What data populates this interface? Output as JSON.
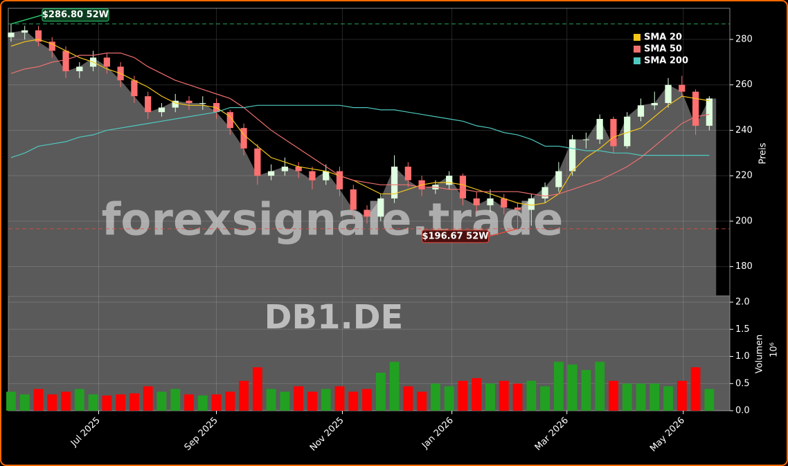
{
  "chart_data": {
    "type": "candlestick",
    "ticker": "DB1.DE",
    "watermark": "forexsignale.trade",
    "ylabel": "Preis",
    "volume_label": "Volumen",
    "volume_offset": "10⁶",
    "xlim": [
      -0.2,
      52.5
    ],
    "xticks": [
      {
        "value": 6.4,
        "label": "Jul 2025"
      },
      {
        "value": 15.0,
        "label": "Sep 2025"
      },
      {
        "value": 24.2,
        "label": "Nov 2025"
      },
      {
        "value": 32.2,
        "label": "Jan 2026"
      },
      {
        "value": 40.6,
        "label": "Mar 2026"
      },
      {
        "value": 49.1,
        "label": "May 2026"
      }
    ],
    "ylim": [
      167.1,
      293.7
    ],
    "yticks": [
      180,
      200,
      220,
      240,
      260,
      280
    ],
    "volume_ylim": [
      0,
      2.115
    ],
    "volume_yticks": [
      {
        "value": 0,
        "label": "0.0"
      },
      0.5,
      {
        "value": 1,
        "label": "1.0"
      },
      1.5,
      {
        "value": 2,
        "label": "2.0"
      }
    ],
    "grid": true,
    "area_color": "#5a5a5a",
    "up_color": "#22a022",
    "down_color": "#ff0000",
    "open": [
      281,
      283,
      284,
      279,
      275,
      266,
      268,
      272,
      268,
      262,
      255,
      248,
      250,
      253,
      252,
      252,
      248,
      241,
      232,
      220,
      222,
      224,
      222,
      218,
      222,
      214,
      205,
      202,
      210,
      224,
      218,
      214,
      216,
      220,
      210,
      207,
      210,
      206,
      205,
      210,
      215,
      222,
      236,
      236,
      245,
      233,
      246,
      251,
      252,
      260,
      257,
      242
    ],
    "high": [
      286.8,
      286,
      286,
      281,
      277,
      270,
      275,
      274,
      270,
      264,
      257,
      252,
      256,
      255,
      255,
      254,
      249,
      243,
      234,
      225,
      228,
      226,
      224,
      225,
      224,
      216,
      207,
      212,
      229,
      226,
      220,
      218,
      222,
      221,
      213,
      214,
      212,
      208,
      212,
      217,
      226,
      238,
      239,
      247,
      246,
      248,
      254,
      257,
      263,
      264,
      258,
      255
    ],
    "low": [
      279,
      280,
      277,
      272,
      263,
      263,
      266,
      265,
      259,
      252,
      245,
      246,
      248,
      249,
      249,
      245,
      238,
      229,
      216,
      218,
      220,
      219,
      214,
      216,
      211,
      201,
      199,
      200,
      208,
      215,
      211,
      212,
      214,
      207,
      204,
      204,
      203,
      196.67,
      198,
      208,
      213,
      220,
      232,
      234,
      230,
      232,
      244,
      249,
      250,
      255,
      238,
      240
    ],
    "close": [
      283,
      284,
      279,
      275,
      266,
      268,
      272,
      268,
      262,
      255,
      248,
      250,
      253,
      252,
      252,
      248,
      241,
      232,
      220,
      222,
      224,
      222,
      218,
      222,
      214,
      205,
      202,
      210,
      224,
      218,
      214,
      216,
      220,
      210,
      207,
      210,
      206,
      205,
      210,
      215,
      222,
      236,
      236,
      245,
      233,
      246,
      251,
      252,
      260,
      257,
      242,
      254
    ],
    "volume": [
      0.35,
      0.3,
      0.4,
      0.3,
      0.35,
      0.4,
      0.3,
      0.28,
      0.3,
      0.32,
      0.45,
      0.35,
      0.4,
      0.3,
      0.28,
      0.3,
      0.35,
      0.55,
      0.8,
      0.4,
      0.35,
      0.45,
      0.35,
      0.4,
      0.45,
      0.35,
      0.4,
      0.7,
      0.9,
      0.45,
      0.35,
      0.5,
      0.45,
      0.55,
      0.6,
      0.5,
      0.55,
      0.5,
      0.55,
      0.45,
      0.9,
      0.85,
      0.75,
      0.9,
      0.55,
      0.5,
      0.5,
      0.5,
      0.45,
      0.55,
      0.8,
      0.4
    ],
    "series": [
      {
        "name": "SMA 20",
        "color": "#f5c518",
        "values": [
          277,
          279,
          280,
          278,
          275,
          272,
          270,
          267,
          265,
          262,
          259,
          255,
          252,
          251,
          251,
          250,
          246,
          238,
          233,
          228,
          226,
          224,
          223,
          222,
          220,
          218,
          215,
          212,
          212,
          214,
          216,
          217,
          217,
          216,
          214,
          212,
          210,
          208,
          207,
          208,
          212,
          222,
          228,
          232,
          237,
          239,
          241,
          246,
          251,
          255,
          254,
          253
        ]
      },
      {
        "name": "SMA 50",
        "color": "#f07070",
        "values": [
          265,
          267,
          268,
          270,
          271,
          273,
          273,
          274,
          274,
          272,
          268,
          265,
          262,
          260,
          258,
          256,
          254,
          250,
          245,
          240,
          236,
          232,
          228,
          224,
          220,
          218,
          217,
          216,
          216,
          216,
          215,
          215,
          214,
          214,
          213,
          213,
          213,
          213,
          212,
          211,
          212,
          214,
          216,
          218,
          221,
          224,
          228,
          233,
          238,
          243,
          246,
          247
        ]
      },
      {
        "name": "SMA 200",
        "color": "#4fc9c0",
        "values": [
          228,
          230,
          233,
          234,
          235,
          237,
          238,
          240,
          241,
          242,
          243,
          244,
          245,
          246,
          247,
          248,
          250,
          250,
          251,
          251,
          251,
          251,
          251,
          251,
          251,
          250,
          250,
          249,
          249,
          248,
          247,
          246,
          245,
          244,
          242,
          241,
          239,
          238,
          236,
          233,
          233,
          232,
          231,
          231,
          230,
          230,
          229,
          229,
          229,
          229,
          229,
          229
        ]
      }
    ],
    "annotations": [
      {
        "text": {
          "value": 286.8,
          "label": "$286.80 52W"
        },
        "index": 0,
        "color": "#2ecc71"
      },
      {
        "text": {
          "value": 196.67,
          "label": "$196.67 52W"
        },
        "index": 37,
        "color": "#e74c3c"
      }
    ]
  }
}
